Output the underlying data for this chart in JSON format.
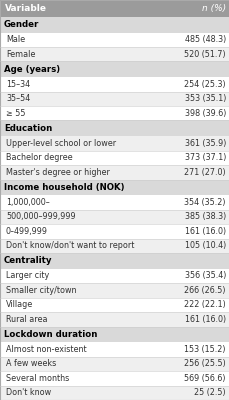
{
  "header": [
    "Variable",
    "n (%)"
  ],
  "rows": [
    {
      "type": "section",
      "label": "Gender"
    },
    {
      "type": "data",
      "label": "Male",
      "value": "485 (48.3)"
    },
    {
      "type": "data",
      "label": "Female",
      "value": "520 (51.7)"
    },
    {
      "type": "section",
      "label": "Age (years)"
    },
    {
      "type": "data",
      "label": "15–34",
      "value": "254 (25.3)"
    },
    {
      "type": "data",
      "label": "35–54",
      "value": "353 (35.1)"
    },
    {
      "type": "data",
      "label": "≥ 55",
      "value": "398 (39.6)"
    },
    {
      "type": "section",
      "label": "Education"
    },
    {
      "type": "data",
      "label": "Upper-level school or lower",
      "value": "361 (35.9)"
    },
    {
      "type": "data",
      "label": "Bachelor degree",
      "value": "373 (37.1)"
    },
    {
      "type": "data",
      "label": "Master's degree or higher",
      "value": "271 (27.0)"
    },
    {
      "type": "section",
      "label": "Income household (NOK)"
    },
    {
      "type": "data",
      "label": "1,000,000–",
      "value": "354 (35.2)"
    },
    {
      "type": "data",
      "label": "500,000–999,999",
      "value": "385 (38.3)"
    },
    {
      "type": "data",
      "label": "0–499,999",
      "value": "161 (16.0)"
    },
    {
      "type": "data",
      "label": "Don't know/don't want to report",
      "value": "105 (10.4)"
    },
    {
      "type": "section",
      "label": "Centrality"
    },
    {
      "type": "data",
      "label": "Larger city",
      "value": "356 (35.4)"
    },
    {
      "type": "data",
      "label": "Smaller city/town",
      "value": "266 (26.5)"
    },
    {
      "type": "data",
      "label": "Village",
      "value": "222 (22.1)"
    },
    {
      "type": "data",
      "label": "Rural area",
      "value": "161 (16.0)"
    },
    {
      "type": "section",
      "label": "Lockdown duration"
    },
    {
      "type": "data",
      "label": "Almost non-existent",
      "value": "153 (15.2)"
    },
    {
      "type": "data",
      "label": "A few weeks",
      "value": "256 (25.5)"
    },
    {
      "type": "data",
      "label": "Several months",
      "value": "569 (56.6)"
    },
    {
      "type": "data",
      "label": "Don't know",
      "value": "25 (2.5)"
    }
  ],
  "header_bg": "#9b9b9b",
  "section_bg": "#d9d9d9",
  "data_bg_odd": "#ffffff",
  "data_bg_even": "#efefef",
  "header_text_color": "#ffffff",
  "section_text_color": "#000000",
  "data_text_color": "#333333",
  "header_font_size": 6.5,
  "section_font_size": 6.2,
  "data_font_size": 5.8,
  "fig_width": 2.3,
  "fig_height": 4.0,
  "dpi": 100
}
